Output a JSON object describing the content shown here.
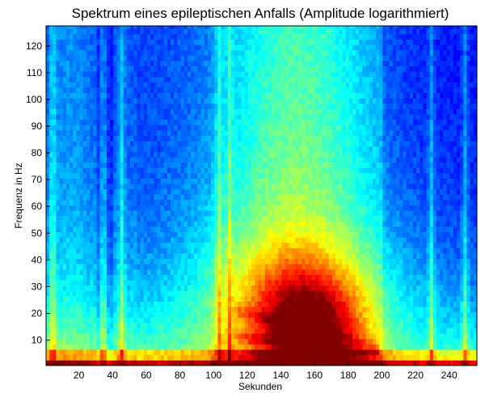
{
  "chart_data": {
    "type": "heatmap",
    "title": "Spektrum eines epileptischen Anfalls (Amplitude logarithmiert)",
    "xlabel": "Sekunden",
    "ylabel": "Frequenz in Hz",
    "xlim": [
      0.5,
      256.5
    ],
    "ylim": [
      0.5,
      127.5
    ],
    "xticks": [
      20,
      40,
      60,
      80,
      100,
      120,
      140,
      160,
      180,
      200,
      220,
      240
    ],
    "yticks": [
      10,
      20,
      30,
      40,
      50,
      60,
      70,
      80,
      90,
      100,
      110,
      120
    ],
    "colormap": "jet",
    "grid": false,
    "legend": "none",
    "bright_vertical_bands_sec": [
      5,
      35,
      46,
      104,
      110,
      230,
      250
    ],
    "seizure_core": {
      "time_sec": 158,
      "freq_hz": 8
    },
    "quiet_intervals_sec": [
      [
        30,
        42
      ],
      [
        55,
        100
      ],
      [
        200,
        256
      ]
    ]
  }
}
